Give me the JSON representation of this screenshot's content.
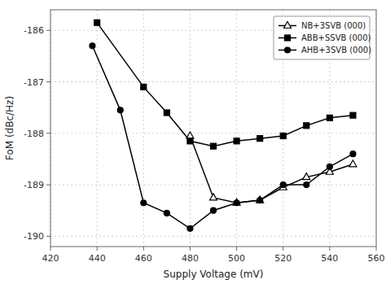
{
  "chart_data": {
    "type": "line",
    "xlabel": "Supply Voltage (mV)",
    "ylabel": "FoM (dBc/Hz)",
    "xlim": [
      420,
      560
    ],
    "ylim": [
      -190.2,
      -185.6
    ],
    "xticks": [
      420,
      440,
      460,
      480,
      500,
      520,
      540,
      560
    ],
    "yticks": [
      -190,
      -189,
      -188,
      -187,
      -186
    ],
    "grid": true,
    "legend": "upper right",
    "series": [
      {
        "name": "NB+3SVB (000)",
        "color": "#000000",
        "marker": "triangle-open",
        "x": [
          480,
          490,
          500,
          510,
          520,
          530,
          540,
          550
        ],
        "values": [
          -188.05,
          -189.25,
          -189.35,
          -189.3,
          -189.05,
          -188.85,
          -188.75,
          -188.6
        ]
      },
      {
        "name": "ABB+SSVB (000)",
        "color": "#000000",
        "marker": "square",
        "x": [
          440,
          460,
          470,
          480,
          490,
          500,
          510,
          520,
          530,
          540,
          550
        ],
        "values": [
          -185.85,
          -187.1,
          -187.6,
          -188.15,
          -188.25,
          -188.15,
          -188.1,
          -188.05,
          -187.85,
          -187.7,
          -187.65
        ]
      },
      {
        "name": "AHB+3SVB (000)",
        "color": "#000000",
        "marker": "circle",
        "x": [
          438,
          450,
          460,
          470,
          480,
          490,
          500,
          510,
          520,
          530,
          540,
          550
        ],
        "values": [
          -186.3,
          -187.55,
          -189.35,
          -189.55,
          -189.85,
          -189.5,
          -189.35,
          -189.3,
          -189.0,
          -189.0,
          -188.65,
          -188.4
        ]
      }
    ]
  }
}
